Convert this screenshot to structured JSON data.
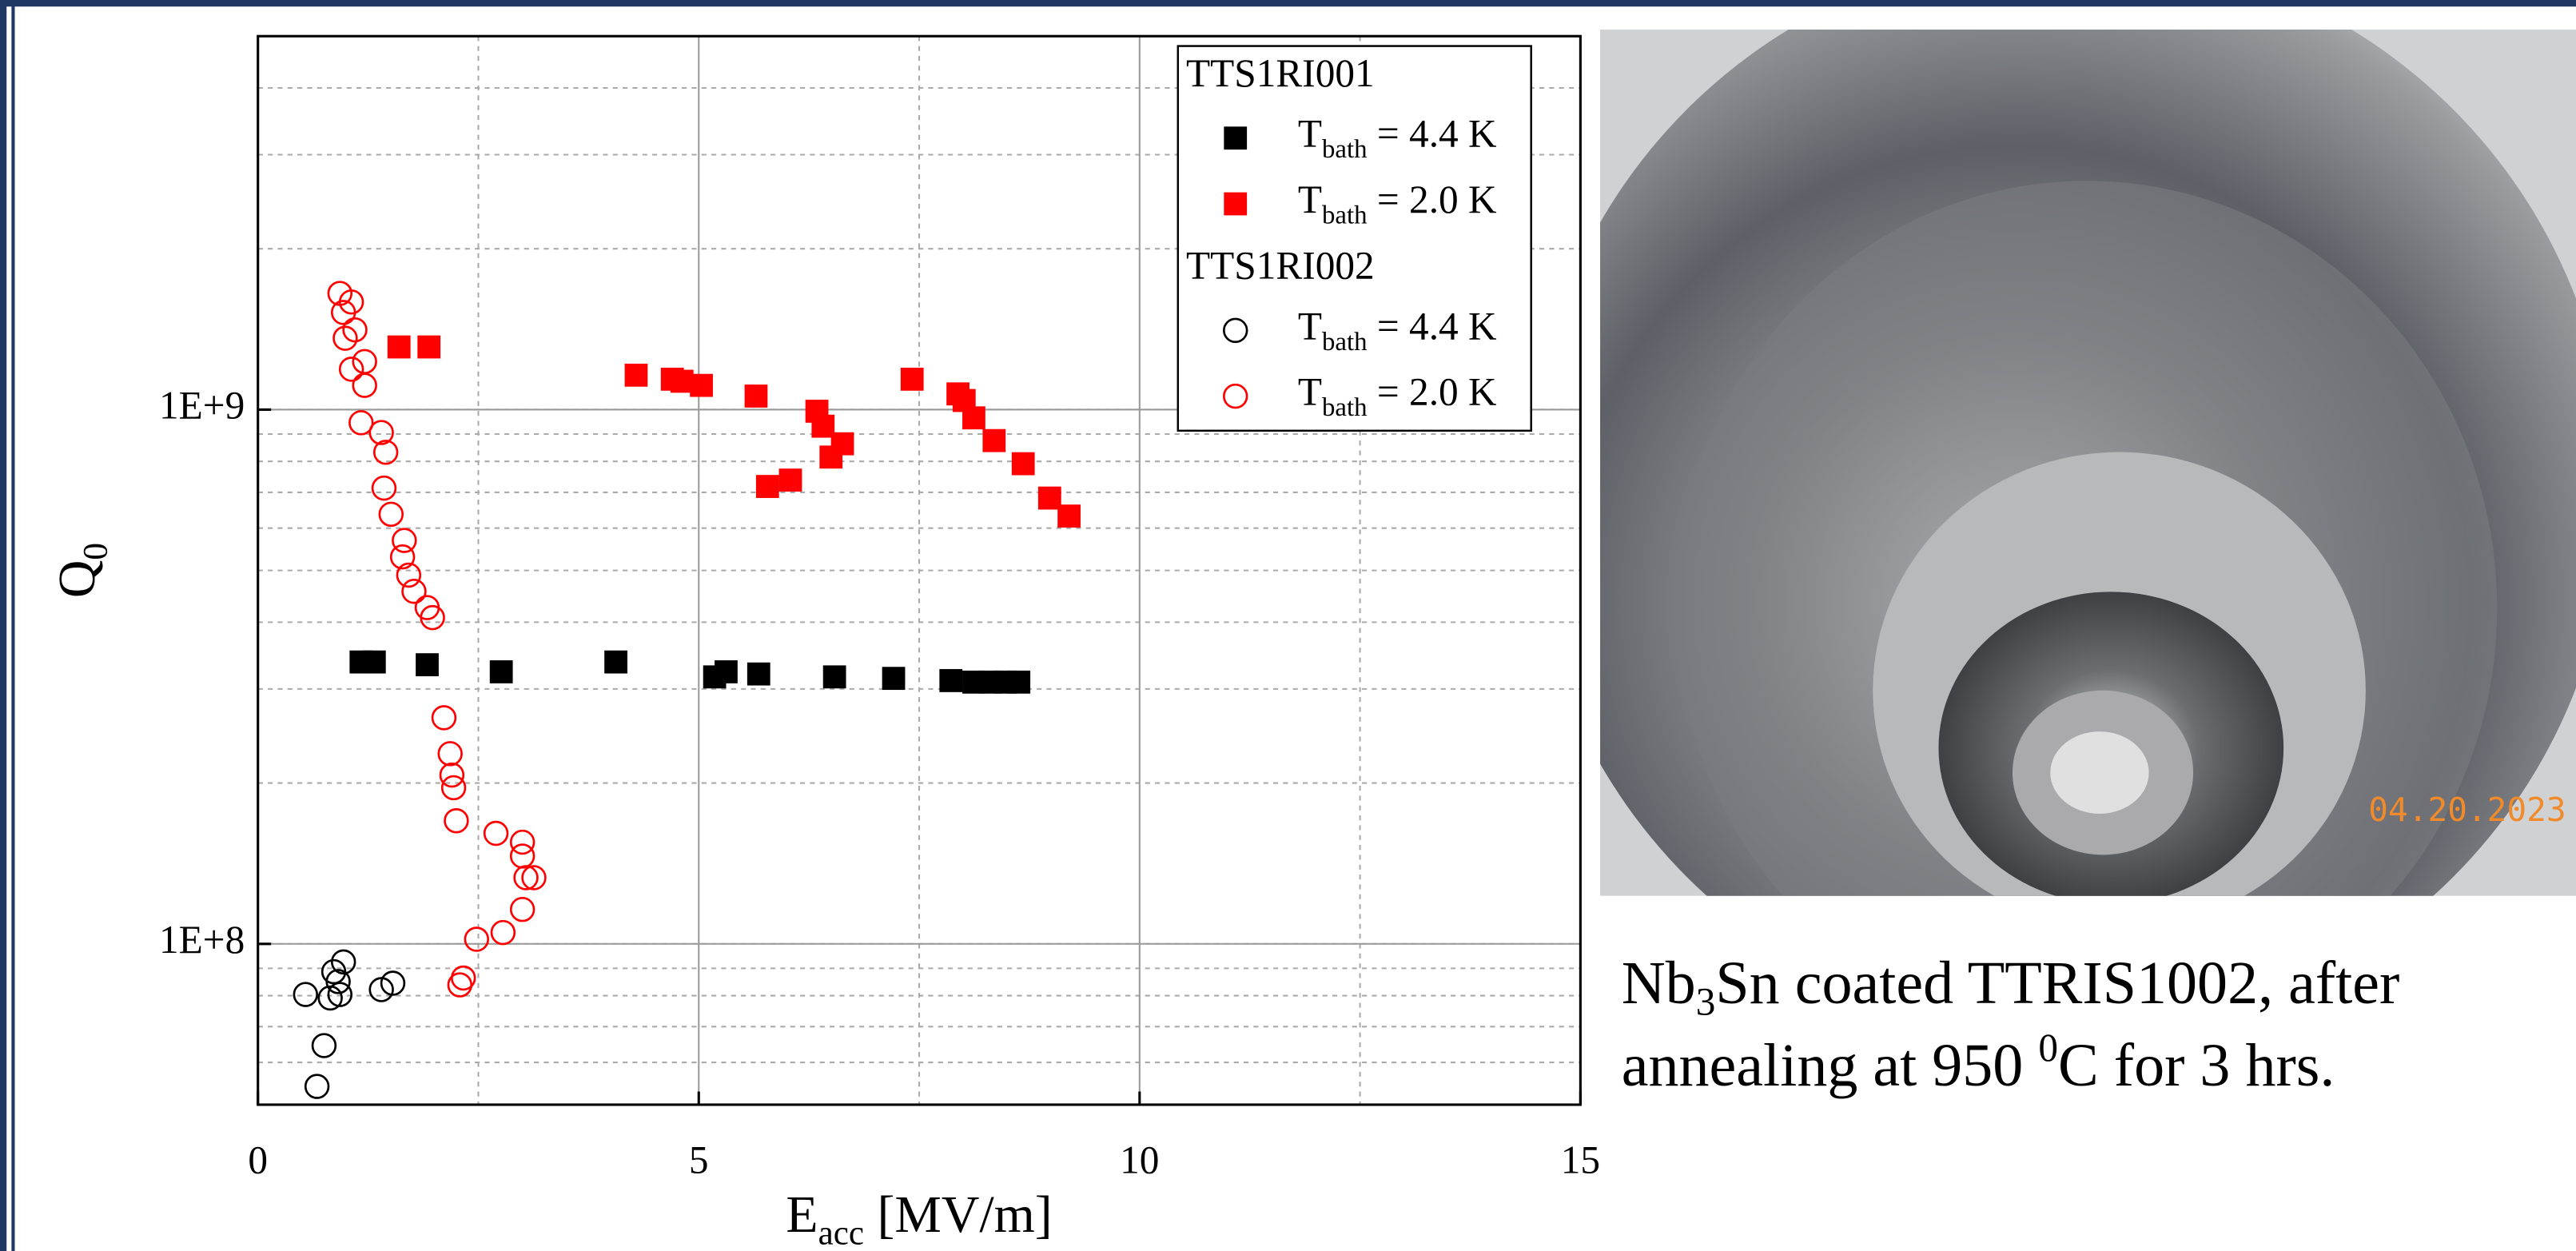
{
  "chart_data": {
    "type": "scatter",
    "xlabel": {
      "text": "E",
      "sub": "acc",
      "rest": " [MV/m]"
    },
    "ylabel": {
      "text": "Q",
      "sub": "0"
    },
    "xlim": [
      0,
      15
    ],
    "xticks": [
      0,
      5,
      10,
      15
    ],
    "ylim": [
      50000000,
      5000000000
    ],
    "yticks": [
      {
        "value": 100000000,
        "label": "1E+8"
      },
      {
        "value": 1000000000,
        "label": "1E+9"
      }
    ],
    "ylog": true,
    "grid": true,
    "minor_grid": true,
    "legend": "upper right",
    "groups": [
      {
        "title": "TTS1RI001",
        "series": [
          {
            "name": {
              "text": "T",
              "sub": "bath",
              "rest": " = 4.4 K"
            },
            "color": "#000000",
            "marker": "square",
            "x": [
              1.17,
              1.32,
              1.92,
              2.76,
              4.06,
              5.18,
              5.31,
              5.68,
              6.54,
              7.21,
              7.86,
              8.12,
              8.31,
              8.48,
              8.63
            ],
            "values": [
              337000000,
              337000000,
              333000000,
              323000000,
              337000000,
              316000000,
              323000000,
              320000000,
              316000000,
              314000000,
              311000000,
              309000000,
              309000000,
              309000000,
              309000000
            ]
          },
          {
            "name": {
              "text": "T",
              "sub": "bath",
              "rest": " = 2.0 K"
            },
            "color": "#ff0000",
            "marker": "square",
            "x": [
              1.6,
              1.94,
              4.29,
              4.7,
              4.81,
              5.03,
              5.65,
              5.78,
              6.04,
              6.34,
              6.41,
              6.5,
              6.63,
              7.42,
              7.94,
              8.01,
              8.12,
              8.35,
              8.68,
              8.98,
              9.2
            ],
            "values": [
              1310000000,
              1310000000,
              1160000000,
              1140000000,
              1130000000,
              1110000000,
              1060000000,
              718000000,
              738000000,
              993000000,
              931000000,
              815000000,
              863000000,
              1140000000,
              1070000000,
              1040000000,
              965000000,
              875000000,
              792000000,
              683000000,
              632000000
            ]
          }
        ]
      },
      {
        "title": "TTS1RI002",
        "series": [
          {
            "name": {
              "text": "T",
              "sub": "bath",
              "rest": " = 4.4 K"
            },
            "color": "#000000",
            "marker": "circle",
            "x": [
              0.67,
              0.75,
              0.54,
              0.82,
              0.91,
              0.86,
              0.97,
              1.4,
              1.53,
              0.93
            ],
            "values": [
              54100000,
              64500000,
              80400000,
              79200000,
              85000000,
              88700000,
              92500000,
              82100000,
              84400000,
              80400000
            ]
          },
          {
            "name": {
              "text": "T",
              "sub": "bath",
              "rest": " = 2.0 K"
            },
            "color": "#ff0000",
            "marker": "circle",
            "x": [
              0.93,
              1.06,
              0.97,
              1.1,
              0.99,
              1.21,
              1.06,
              1.21,
              1.17,
              1.4,
              1.45,
              1.43,
              1.51,
              1.66,
              1.64,
              1.71,
              1.77,
              1.92,
              1.98,
              2.11,
              2.18,
              2.2,
              2.22,
              2.25,
              2.7,
              3.0,
              3.0,
              3.04,
              3.13,
              3.0,
              2.78,
              2.48,
              2.33,
              2.29
            ],
            "values": [
              1650000000,
              1590000000,
              1520000000,
              1410000000,
              1360000000,
              1230000000,
              1190000000,
              1110000000,
              945000000,
              906000000,
              832000000,
              713000000,
              637000000,
              569000000,
              530000000,
              490000000,
              457000000,
              426000000,
              408000000,
              265000000,
              227000000,
              207000000,
              196000000,
              170000000,
              161000000,
              155000000,
              146000000,
              133000000,
              133000000,
              116000000,
              105000000,
              102000000,
              86300000,
              83800000
            ]
          }
        ]
      }
    ]
  },
  "photo": {
    "date": "04.20.2023"
  },
  "caption": {
    "line1": {
      "a": "Nb",
      "sub": "3",
      "b": "Sn coated TTRIS1002, after"
    },
    "line2": {
      "a": "annealing at 950 ",
      "sup": "0",
      "b": "C for 3 hrs."
    }
  }
}
